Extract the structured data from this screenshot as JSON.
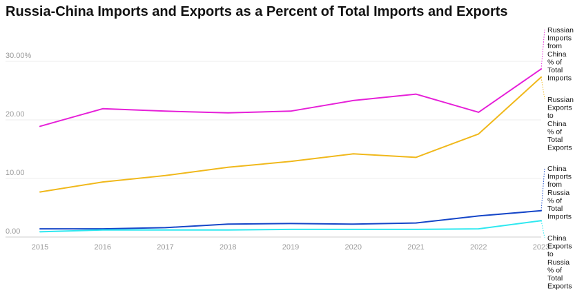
{
  "chart_data": {
    "type": "line",
    "title": "Russia-China Imports and Exports as a Percent of Total Imports and Exports",
    "xlabel": "",
    "ylabel": "",
    "x": [
      "2015",
      "2016",
      "2017",
      "2018",
      "2019",
      "2020",
      "2021",
      "2022",
      "2023"
    ],
    "y_ticks": [
      "0.00",
      "10.00",
      "20.00",
      "30.00%"
    ],
    "ylim": [
      0,
      30
    ],
    "grid": true,
    "legend": "end-of-line labels at right",
    "series": [
      {
        "name": "Russian Imports from China % of Total Imports",
        "label_lines": [
          "Russian",
          "Imports",
          "from",
          "China",
          "% of",
          "Total",
          "Imports"
        ],
        "color": "#e620d8",
        "values": [
          18.9,
          21.9,
          21.5,
          21.2,
          21.5,
          23.3,
          24.4,
          21.3,
          28.7
        ]
      },
      {
        "name": "Russian Exports to China % of Total Exports",
        "label_lines": [
          "Russian",
          "Exports",
          "to",
          "China",
          "% of",
          "Total",
          "Exports"
        ],
        "color": "#f0b81b",
        "values": [
          7.7,
          9.4,
          10.5,
          11.9,
          12.9,
          14.2,
          13.6,
          17.6,
          27.3
        ]
      },
      {
        "name": "China Imports from Russia % of Total Imports",
        "label_lines": [
          "China",
          "Imports",
          "from",
          "Russia",
          "% of",
          "Total",
          "Imports"
        ],
        "color": "#1546c8",
        "values": [
          1.4,
          1.4,
          1.6,
          2.2,
          2.3,
          2.2,
          2.4,
          3.6,
          4.5
        ]
      },
      {
        "name": "China Exports to Russia % of Total Exports",
        "label_lines": [
          "China",
          "Exports",
          "to",
          "Russia",
          "% of",
          "Total",
          "Exports"
        ],
        "color": "#2ee8f0",
        "values": [
          0.9,
          1.2,
          1.2,
          1.2,
          1.3,
          1.3,
          1.3,
          1.4,
          2.8
        ]
      }
    ]
  }
}
